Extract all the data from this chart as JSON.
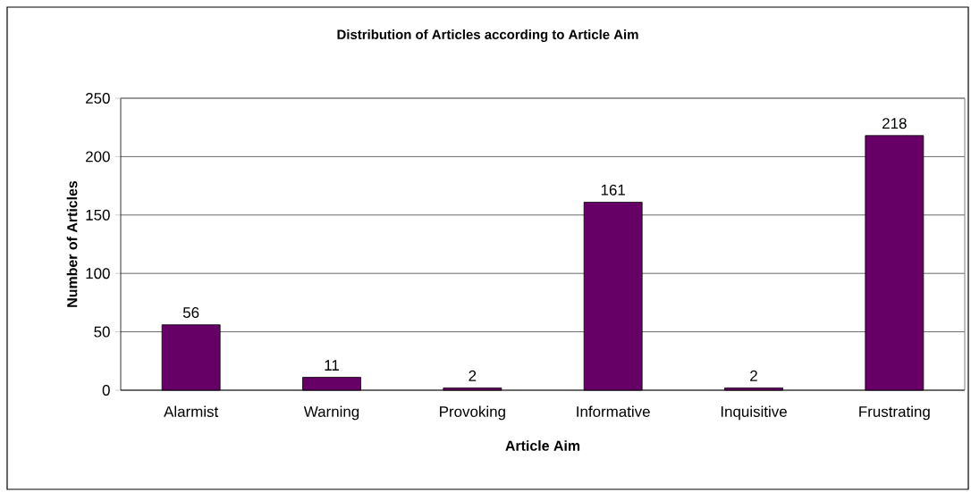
{
  "chart_data": {
    "type": "bar",
    "title": "Distribution of Articles according to Article Aim",
    "xlabel": "Article Aim",
    "ylabel": "Number of Articles",
    "categories": [
      "Alarmist",
      "Warning",
      "Provoking",
      "Informative",
      "Inquisitive",
      "Frustrating"
    ],
    "values": [
      56,
      11,
      2,
      161,
      2,
      218
    ],
    "color": "#660066",
    "ylim": [
      0,
      250
    ],
    "yticks": [
      0,
      50,
      100,
      150,
      200,
      250
    ],
    "grid": "y",
    "data_labels": true
  }
}
